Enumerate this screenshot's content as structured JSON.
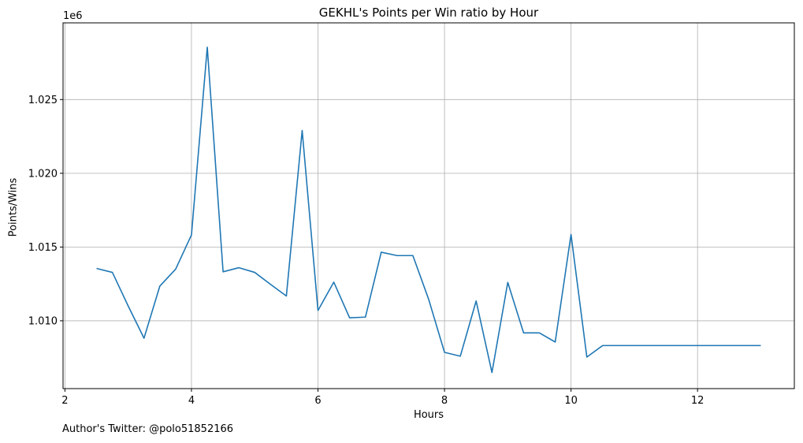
{
  "chart_data": {
    "type": "line",
    "title": "GEKHL's Points per Win ratio by Hour",
    "xlabel": "Hours",
    "ylabel": "Points/Wins",
    "y_offset_label": "1e6",
    "xlim": [
      1.97,
      13.53
    ],
    "ylim": [
      1005400,
      1030200
    ],
    "x_ticks": [
      2,
      4,
      6,
      8,
      10,
      12
    ],
    "y_ticks": [
      1010000,
      1015000,
      1020000,
      1025000
    ],
    "y_tick_labels": [
      "1.010",
      "1.015",
      "1.020",
      "1.025"
    ],
    "grid": true,
    "line_color": "#1f77b4",
    "series": [
      {
        "name": "Points/Wins",
        "x": [
          2.5,
          2.75,
          3.0,
          3.25,
          3.5,
          3.75,
          4.0,
          4.25,
          4.5,
          4.75,
          5.0,
          5.25,
          5.5,
          5.75,
          6.0,
          6.25,
          6.5,
          6.75,
          7.0,
          7.25,
          7.5,
          7.75,
          8.0,
          8.25,
          8.5,
          8.75,
          9.0,
          9.25,
          9.5,
          9.75,
          10.0,
          10.25,
          10.5,
          10.75,
          11.0,
          11.25,
          11.5,
          11.75,
          12.0,
          12.25,
          12.5,
          12.75,
          13.0
        ],
        "values": [
          1013550,
          1013280,
          1011000,
          1008820,
          1012350,
          1013500,
          1015820,
          1028550,
          1013320,
          1013600,
          1013280,
          1012470,
          1011680,
          1022900,
          1010700,
          1012620,
          1010200,
          1010250,
          1014650,
          1014420,
          1014420,
          1011450,
          1007860,
          1007600,
          1011340,
          1006490,
          1012600,
          1009180,
          1009180,
          1008560,
          1015850,
          1007540,
          1008320,
          1008320,
          1008320,
          1008320,
          1008320,
          1008320,
          1008320,
          1008320,
          1008320,
          1008320,
          1008320
        ]
      }
    ]
  },
  "footer": "Author's Twitter: @polo51852166"
}
